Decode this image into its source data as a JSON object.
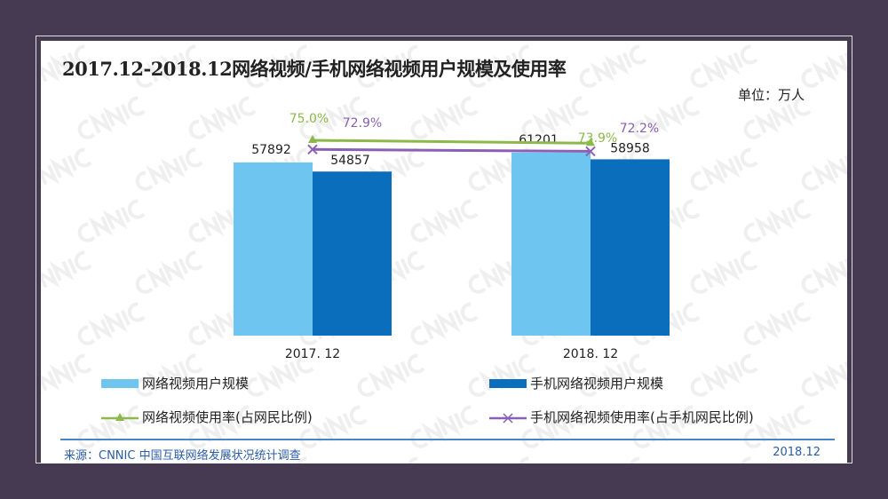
{
  "chart_data": {
    "type": "bar",
    "title": "2017.12-2018.12网络视频/手机网络视频用户规模及使用率",
    "unit_label": "单位：万人",
    "categories": [
      "2017. 12",
      "2018. 12"
    ],
    "series": [
      {
        "name": "网络视频用户规模",
        "type": "bar",
        "values": [
          57892,
          61201
        ],
        "color": "#6ec6f0"
      },
      {
        "name": "手机网络视频用户规模",
        "type": "bar",
        "values": [
          54857,
          58958
        ],
        "color": "#0a6ebd"
      },
      {
        "name": "网络视频使用率(占网民比例)",
        "type": "line",
        "marker": "triangle",
        "values": [
          75.0,
          73.9
        ],
        "labels": [
          "75.0%",
          "73.9%"
        ],
        "color": "#8db84a"
      },
      {
        "name": "手机网络视频使用率(占手机网民比例)",
        "type": "line",
        "marker": "x",
        "values": [
          72.9,
          72.2
        ],
        "labels": [
          "72.9%",
          "72.2%"
        ],
        "color": "#8a5fb5"
      }
    ],
    "grid": false,
    "legend_position": "bottom"
  },
  "watermark": "CNNIC",
  "footer": {
    "source": "来源：CNNIC 中国互联网络发展状况统计调查",
    "date": "2018.12"
  }
}
